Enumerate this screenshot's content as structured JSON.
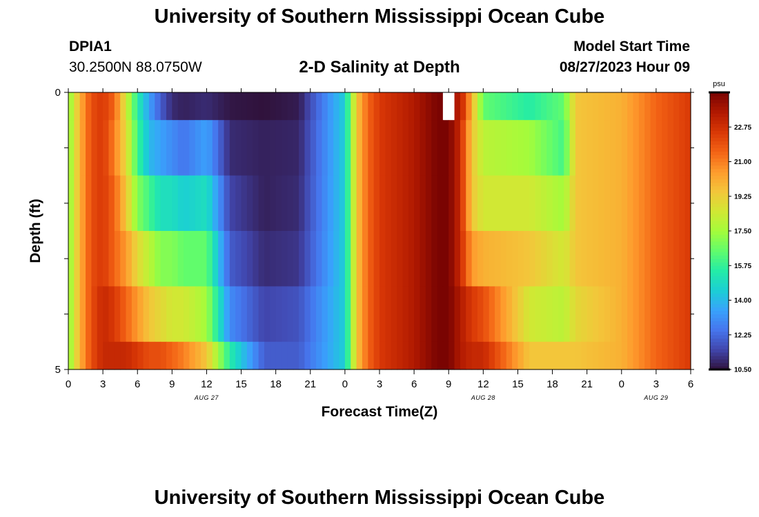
{
  "header": {
    "title": "University of Southern Mississippi Ocean Cube",
    "station_id": "DPIA1",
    "coordinates": "30.2500N  88.0750W",
    "subtitle": "2-D Salinity at Depth",
    "model_start_label": "Model Start Time",
    "model_start_value": "08/27/2023 Hour 09"
  },
  "footer": {
    "title": "University of Southern Mississippi Ocean Cube"
  },
  "colors": {
    "colormap": [
      "#30123b",
      "#4145ab",
      "#4675ed",
      "#39a2fc",
      "#1bcfd4",
      "#24eca6",
      "#61fc6c",
      "#a4fc3b",
      "#d1e834",
      "#f3c63a",
      "#fe9b2d",
      "#f36315",
      "#d93806",
      "#b11901",
      "#7a0402"
    ],
    "missing": "#ffffff"
  },
  "chart_data": {
    "type": "heatmap",
    "xlabel": "Forecast Time(Z)",
    "ylabel": "Depth (ft)",
    "x_tick_labels": [
      "0",
      "3",
      "6",
      "9",
      "12",
      "15",
      "18",
      "21",
      "0",
      "3",
      "6",
      "9",
      "12",
      "15",
      "18",
      "21",
      "0",
      "3",
      "6"
    ],
    "date_labels": [
      "AUG 27",
      "AUG 28",
      "AUG 29"
    ],
    "y_tick_labels": [
      "0",
      "5"
    ],
    "ylim": [
      0,
      5
    ],
    "colorbar_title": "psu",
    "colorbar_ticks": [
      "22.75",
      "21.00",
      "19.25",
      "17.50",
      "15.75",
      "14.00",
      "12.25",
      "10.50"
    ],
    "value_range": [
      10.5,
      24.5
    ],
    "x_start": "08/27/2023 00Z",
    "x_end": "08/29/2023 06Z",
    "depth_levels": [
      "0-0.5",
      "0.5-1.5",
      "1.5-2.5",
      "2.5-3.5",
      "3.5-4.5",
      "4.5-5"
    ],
    "series": [
      {
        "name": "0-0.5",
        "times": [
          0,
          1,
          2,
          3,
          4,
          5,
          6,
          7,
          8,
          9,
          10,
          12,
          14,
          17,
          20,
          24,
          25,
          26,
          27,
          30,
          32,
          33,
          34,
          35,
          36,
          40,
          43,
          44,
          48,
          51,
          54
        ],
        "values": [
          17.0,
          20.0,
          22.0,
          22.5,
          21.5,
          18.5,
          15.5,
          13.5,
          12.0,
          11.0,
          10.8,
          11.0,
          10.6,
          10.5,
          10.7,
          14.5,
          19.5,
          21.5,
          22.5,
          23.5,
          24.5,
          null,
          23.5,
          20.0,
          16.5,
          15.5,
          16.5,
          19.5,
          20.0,
          21.5,
          22.5
        ]
      },
      {
        "name": "0.5-1.5",
        "times": [
          0,
          1,
          2,
          3,
          4,
          5,
          6,
          7,
          8,
          9,
          10,
          12,
          14,
          17,
          20,
          24,
          25,
          26,
          27,
          30,
          32,
          33,
          34,
          35,
          36,
          40,
          43,
          44,
          48,
          51,
          54
        ],
        "values": [
          17.0,
          20.0,
          22.0,
          22.5,
          21.0,
          19.0,
          16.0,
          14.0,
          13.5,
          13.0,
          12.5,
          13.5,
          11.0,
          10.8,
          10.9,
          14.5,
          19.5,
          21.5,
          22.5,
          23.5,
          24.5,
          24.5,
          23.0,
          19.5,
          18.0,
          17.5,
          16.0,
          19.5,
          20.0,
          21.5,
          22.5
        ]
      },
      {
        "name": "1.5-2.5",
        "times": [
          0,
          1,
          2,
          3,
          4,
          5,
          6,
          7,
          8,
          9,
          10,
          12,
          14,
          17,
          20,
          24,
          25,
          26,
          27,
          30,
          32,
          33,
          34,
          35,
          36,
          40,
          43,
          44,
          48,
          51,
          54
        ],
        "values": [
          17.0,
          20.0,
          22.0,
          22.5,
          21.5,
          19.5,
          17.0,
          16.0,
          15.0,
          15.0,
          14.5,
          15.0,
          11.5,
          10.8,
          11.0,
          14.5,
          19.5,
          21.5,
          22.5,
          23.5,
          24.5,
          24.5,
          23.0,
          19.5,
          18.5,
          18.5,
          17.5,
          19.5,
          20.0,
          21.5,
          22.5
        ]
      },
      {
        "name": "2.5-3.5",
        "times": [
          0,
          1,
          2,
          3,
          4,
          5,
          6,
          7,
          8,
          9,
          10,
          12,
          14,
          17,
          20,
          24,
          25,
          26,
          27,
          30,
          32,
          33,
          34,
          35,
          36,
          40,
          43,
          44,
          48,
          51,
          54
        ],
        "values": [
          17.0,
          20.0,
          22.0,
          22.5,
          21.5,
          20.5,
          19.0,
          18.0,
          17.0,
          17.0,
          16.5,
          16.5,
          12.0,
          11.0,
          11.2,
          14.5,
          19.5,
          21.5,
          22.5,
          23.5,
          24.5,
          24.5,
          23.0,
          20.5,
          20.0,
          19.5,
          18.5,
          19.5,
          20.0,
          21.5,
          22.5
        ]
      },
      {
        "name": "3.5-4.5",
        "times": [
          0,
          1,
          2,
          3,
          4,
          5,
          6,
          7,
          8,
          9,
          10,
          12,
          14,
          17,
          20,
          24,
          25,
          26,
          27,
          30,
          32,
          33,
          34,
          35,
          36,
          40,
          43,
          44,
          48,
          51,
          54
        ],
        "values": [
          17.0,
          20.0,
          22.0,
          23.0,
          22.5,
          21.5,
          20.5,
          19.5,
          19.0,
          18.5,
          18.5,
          17.5,
          13.0,
          11.5,
          11.8,
          14.5,
          19.5,
          21.5,
          22.5,
          23.5,
          24.5,
          24.5,
          23.5,
          22.5,
          22.0,
          18.5,
          18.0,
          19.0,
          20.0,
          21.5,
          22.5
        ]
      },
      {
        "name": "4.5-5",
        "times": [
          0,
          1,
          2,
          3,
          4,
          5,
          6,
          7,
          8,
          9,
          10,
          12,
          14,
          17,
          20,
          24,
          25,
          26,
          27,
          30,
          32,
          33,
          34,
          35,
          36,
          40,
          43,
          44,
          48,
          51,
          54
        ],
        "values": [
          17.0,
          20.0,
          22.0,
          23.0,
          23.0,
          23.0,
          22.5,
          22.0,
          22.0,
          21.5,
          21.0,
          19.5,
          15.5,
          12.0,
          12.0,
          14.5,
          19.5,
          21.5,
          22.5,
          23.5,
          24.5,
          24.5,
          23.5,
          23.0,
          23.0,
          19.5,
          19.5,
          19.5,
          20.0,
          21.5,
          22.5
        ]
      }
    ]
  }
}
